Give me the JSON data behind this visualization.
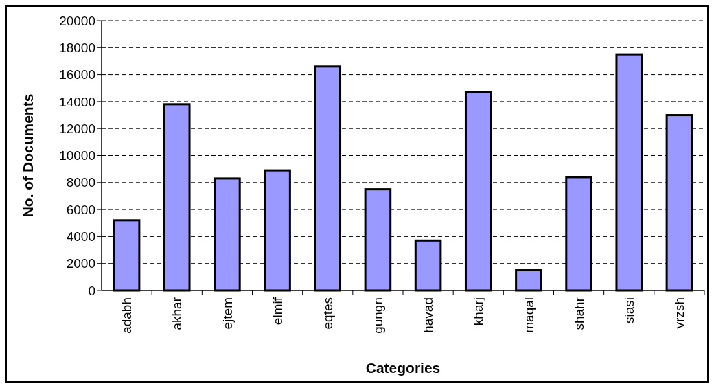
{
  "chart_data": {
    "type": "bar",
    "xlabel": "Categories",
    "ylabel": "No. of Documents",
    "categories": [
      "adabh",
      "akhar",
      "ejtem",
      "elmif",
      "eqtes",
      "gungn",
      "havad",
      "kharj",
      "maqal",
      "shahr",
      "siasi",
      "vrzsh"
    ],
    "values": [
      5200,
      13800,
      8300,
      8900,
      16600,
      7500,
      3700,
      14700,
      1500,
      8400,
      17500,
      13000
    ],
    "color": "#9999ff",
    "ylim": [
      0,
      20000
    ],
    "yticks": [
      0,
      2000,
      4000,
      6000,
      8000,
      10000,
      12000,
      14000,
      16000,
      18000,
      20000
    ],
    "grid": "y"
  }
}
